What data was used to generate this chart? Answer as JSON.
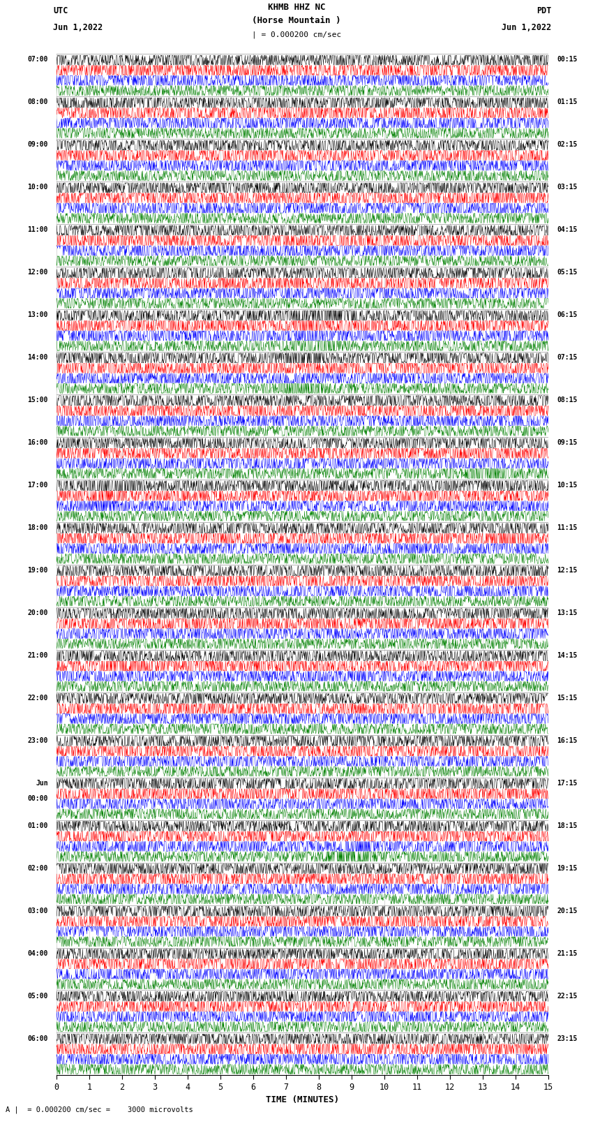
{
  "title_line1": "KHMB HHZ NC",
  "title_line2": "(Horse Mountain )",
  "scale_label": "| = 0.000200 cm/sec",
  "bottom_label": "A |  = 0.000200 cm/sec =    3000 microvolts",
  "xlabel": "TIME (MINUTES)",
  "left_header_line1": "UTC",
  "left_header_line2": "Jun 1,2022",
  "right_header_line1": "PDT",
  "right_header_line2": "Jun 1,2022",
  "left_times": [
    "07:00",
    "08:00",
    "09:00",
    "10:00",
    "11:00",
    "12:00",
    "13:00",
    "14:00",
    "15:00",
    "16:00",
    "17:00",
    "18:00",
    "19:00",
    "20:00",
    "21:00",
    "22:00",
    "23:00",
    "Jun",
    "01:00",
    "02:00",
    "03:00",
    "04:00",
    "05:00",
    "06:00"
  ],
  "left_times_extra": [
    "",
    "",
    "",
    "",
    "",
    "",
    "",
    "",
    "",
    "",
    "",
    "",
    "",
    "",
    "",
    "",
    "",
    "00:00",
    "",
    "",
    "",
    "",
    "",
    ""
  ],
  "right_times": [
    "00:15",
    "01:15",
    "02:15",
    "03:15",
    "04:15",
    "05:15",
    "06:15",
    "07:15",
    "08:15",
    "09:15",
    "10:15",
    "11:15",
    "12:15",
    "13:15",
    "14:15",
    "15:15",
    "16:15",
    "17:15",
    "18:15",
    "19:15",
    "20:15",
    "21:15",
    "22:15",
    "23:15"
  ],
  "colors": [
    "black",
    "red",
    "blue",
    "green"
  ],
  "bg_color": "white",
  "n_rows": 24,
  "traces_per_row": 4,
  "x_min": 0,
  "x_max": 15,
  "xticks": [
    0,
    1,
    2,
    3,
    4,
    5,
    6,
    7,
    8,
    9,
    10,
    11,
    12,
    13,
    14,
    15
  ],
  "figsize": [
    8.5,
    16.13
  ],
  "dpi": 100,
  "noise_scales": [
    0.18,
    0.22,
    0.18,
    0.12
  ],
  "ar_coeff": 0.3,
  "n_pts": 1500
}
